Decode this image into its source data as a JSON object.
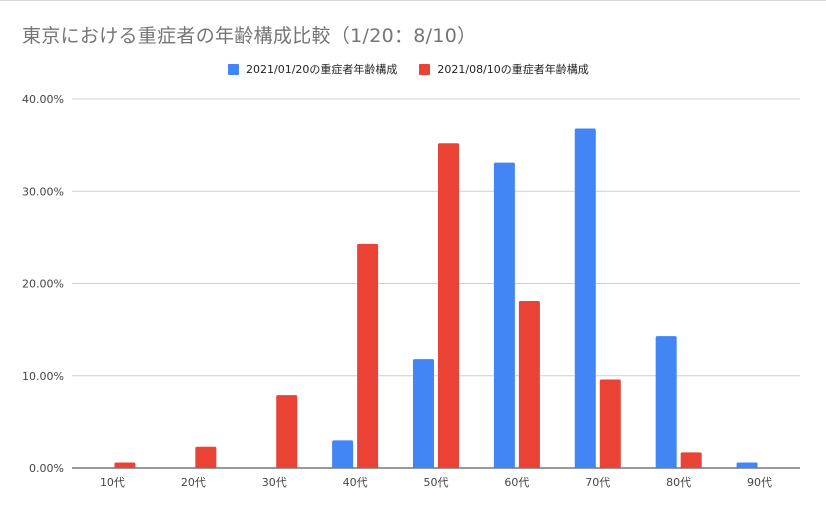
{
  "chart_data": {
    "type": "bar",
    "title": "東京における重症者の年齢構成比較（1/20：8/10）",
    "categories": [
      "10代",
      "20代",
      "30代",
      "40代",
      "50代",
      "60代",
      "70代",
      "80代",
      "90代"
    ],
    "series": [
      {
        "name": "2021/01/20の重症者年齢構成",
        "color": "#4285f4",
        "values": [
          0,
          0,
          0,
          3.0,
          11.8,
          33.1,
          36.8,
          14.3,
          0.6
        ]
      },
      {
        "name": "2021/08/10の重症者年齢構成",
        "color": "#ea4335",
        "values": [
          0.6,
          2.3,
          7.9,
          24.3,
          35.2,
          18.1,
          9.6,
          1.7,
          0
        ]
      }
    ],
    "yticks": [
      "0.00%",
      "10.00%",
      "20.00%",
      "30.00%",
      "40.00%"
    ],
    "ylim": [
      0,
      40
    ],
    "grid": true,
    "legend_position": "top"
  }
}
